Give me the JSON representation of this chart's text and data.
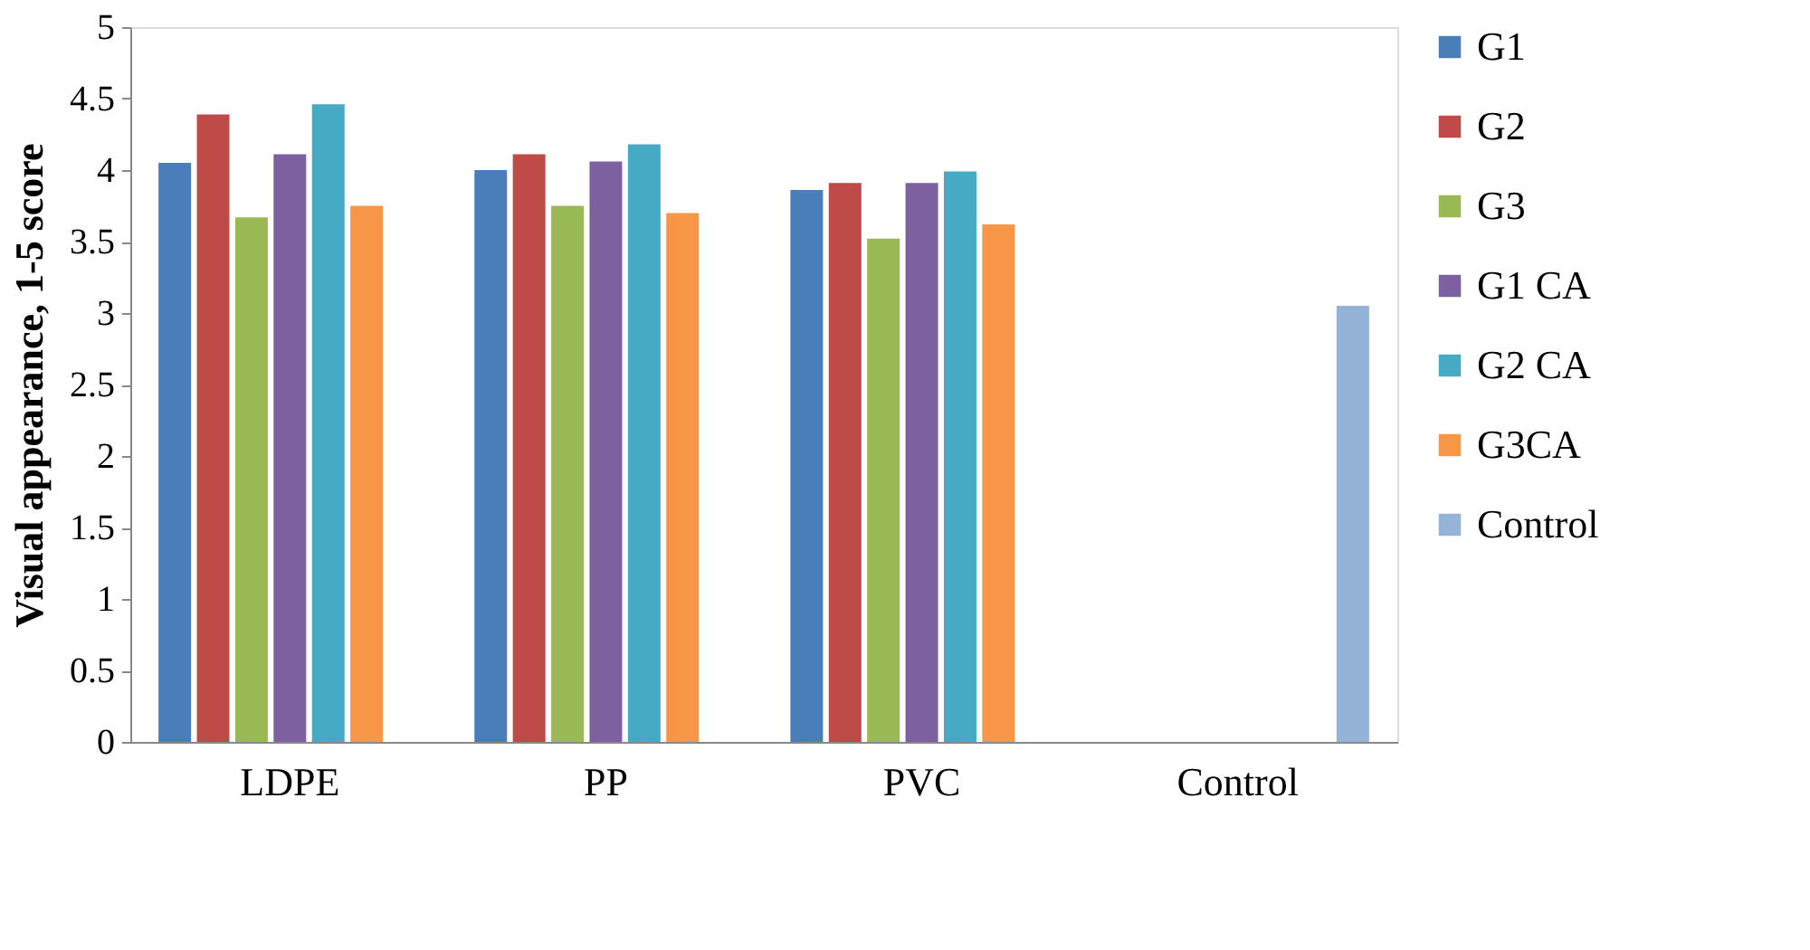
{
  "chart_data": {
    "type": "bar",
    "ylabel": "Visual appearance, 1-5 score",
    "categories": [
      "LDPE",
      "PP",
      "PVC",
      "Control"
    ],
    "series": [
      {
        "name": "G1",
        "color": "#4a7ebb",
        "values": [
          4.05,
          4.0,
          3.86,
          null
        ]
      },
      {
        "name": "G2",
        "color": "#be4b48",
        "values": [
          4.39,
          4.11,
          3.91,
          null
        ]
      },
      {
        "name": "G3",
        "color": "#98b954",
        "values": [
          3.67,
          3.75,
          3.52,
          null
        ]
      },
      {
        "name": "G1 CA",
        "color": "#7d60a0",
        "values": [
          4.11,
          4.06,
          3.91,
          null
        ]
      },
      {
        "name": "G2 CA",
        "color": "#46aac5",
        "values": [
          4.46,
          4.18,
          3.99,
          null
        ]
      },
      {
        "name": "G3CA",
        "color": "#f79646",
        "values": [
          3.75,
          3.7,
          3.62,
          null
        ]
      },
      {
        "name": "Control",
        "color": "#95b3d7",
        "values": [
          null,
          null,
          null,
          3.05
        ]
      }
    ],
    "ylim": [
      0,
      5
    ],
    "yticks": [
      0,
      0.5,
      1,
      1.5,
      2,
      2.5,
      3,
      3.5,
      4,
      4.5,
      5
    ],
    "grid": false,
    "legend": "right"
  }
}
